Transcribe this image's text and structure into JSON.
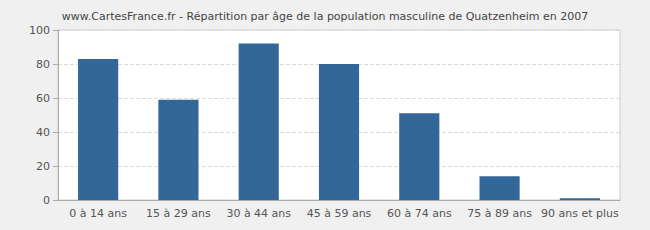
{
  "chart_data": {
    "type": "bar",
    "title": "www.CartesFrance.fr - Répartition par âge de la population masculine de Quatzenheim en 2007",
    "categories": [
      "0 à 14 ans",
      "15 à 29 ans",
      "30 à 44 ans",
      "45 à 59 ans",
      "60 à 74 ans",
      "75 à 89 ans",
      "90 ans et plus"
    ],
    "values": [
      83,
      59,
      92,
      80,
      51,
      14,
      1
    ],
    "color": "#336699",
    "ylim": [
      0,
      100
    ],
    "yticks": [
      0,
      20,
      40,
      60,
      80,
      100
    ],
    "grid": true
  }
}
